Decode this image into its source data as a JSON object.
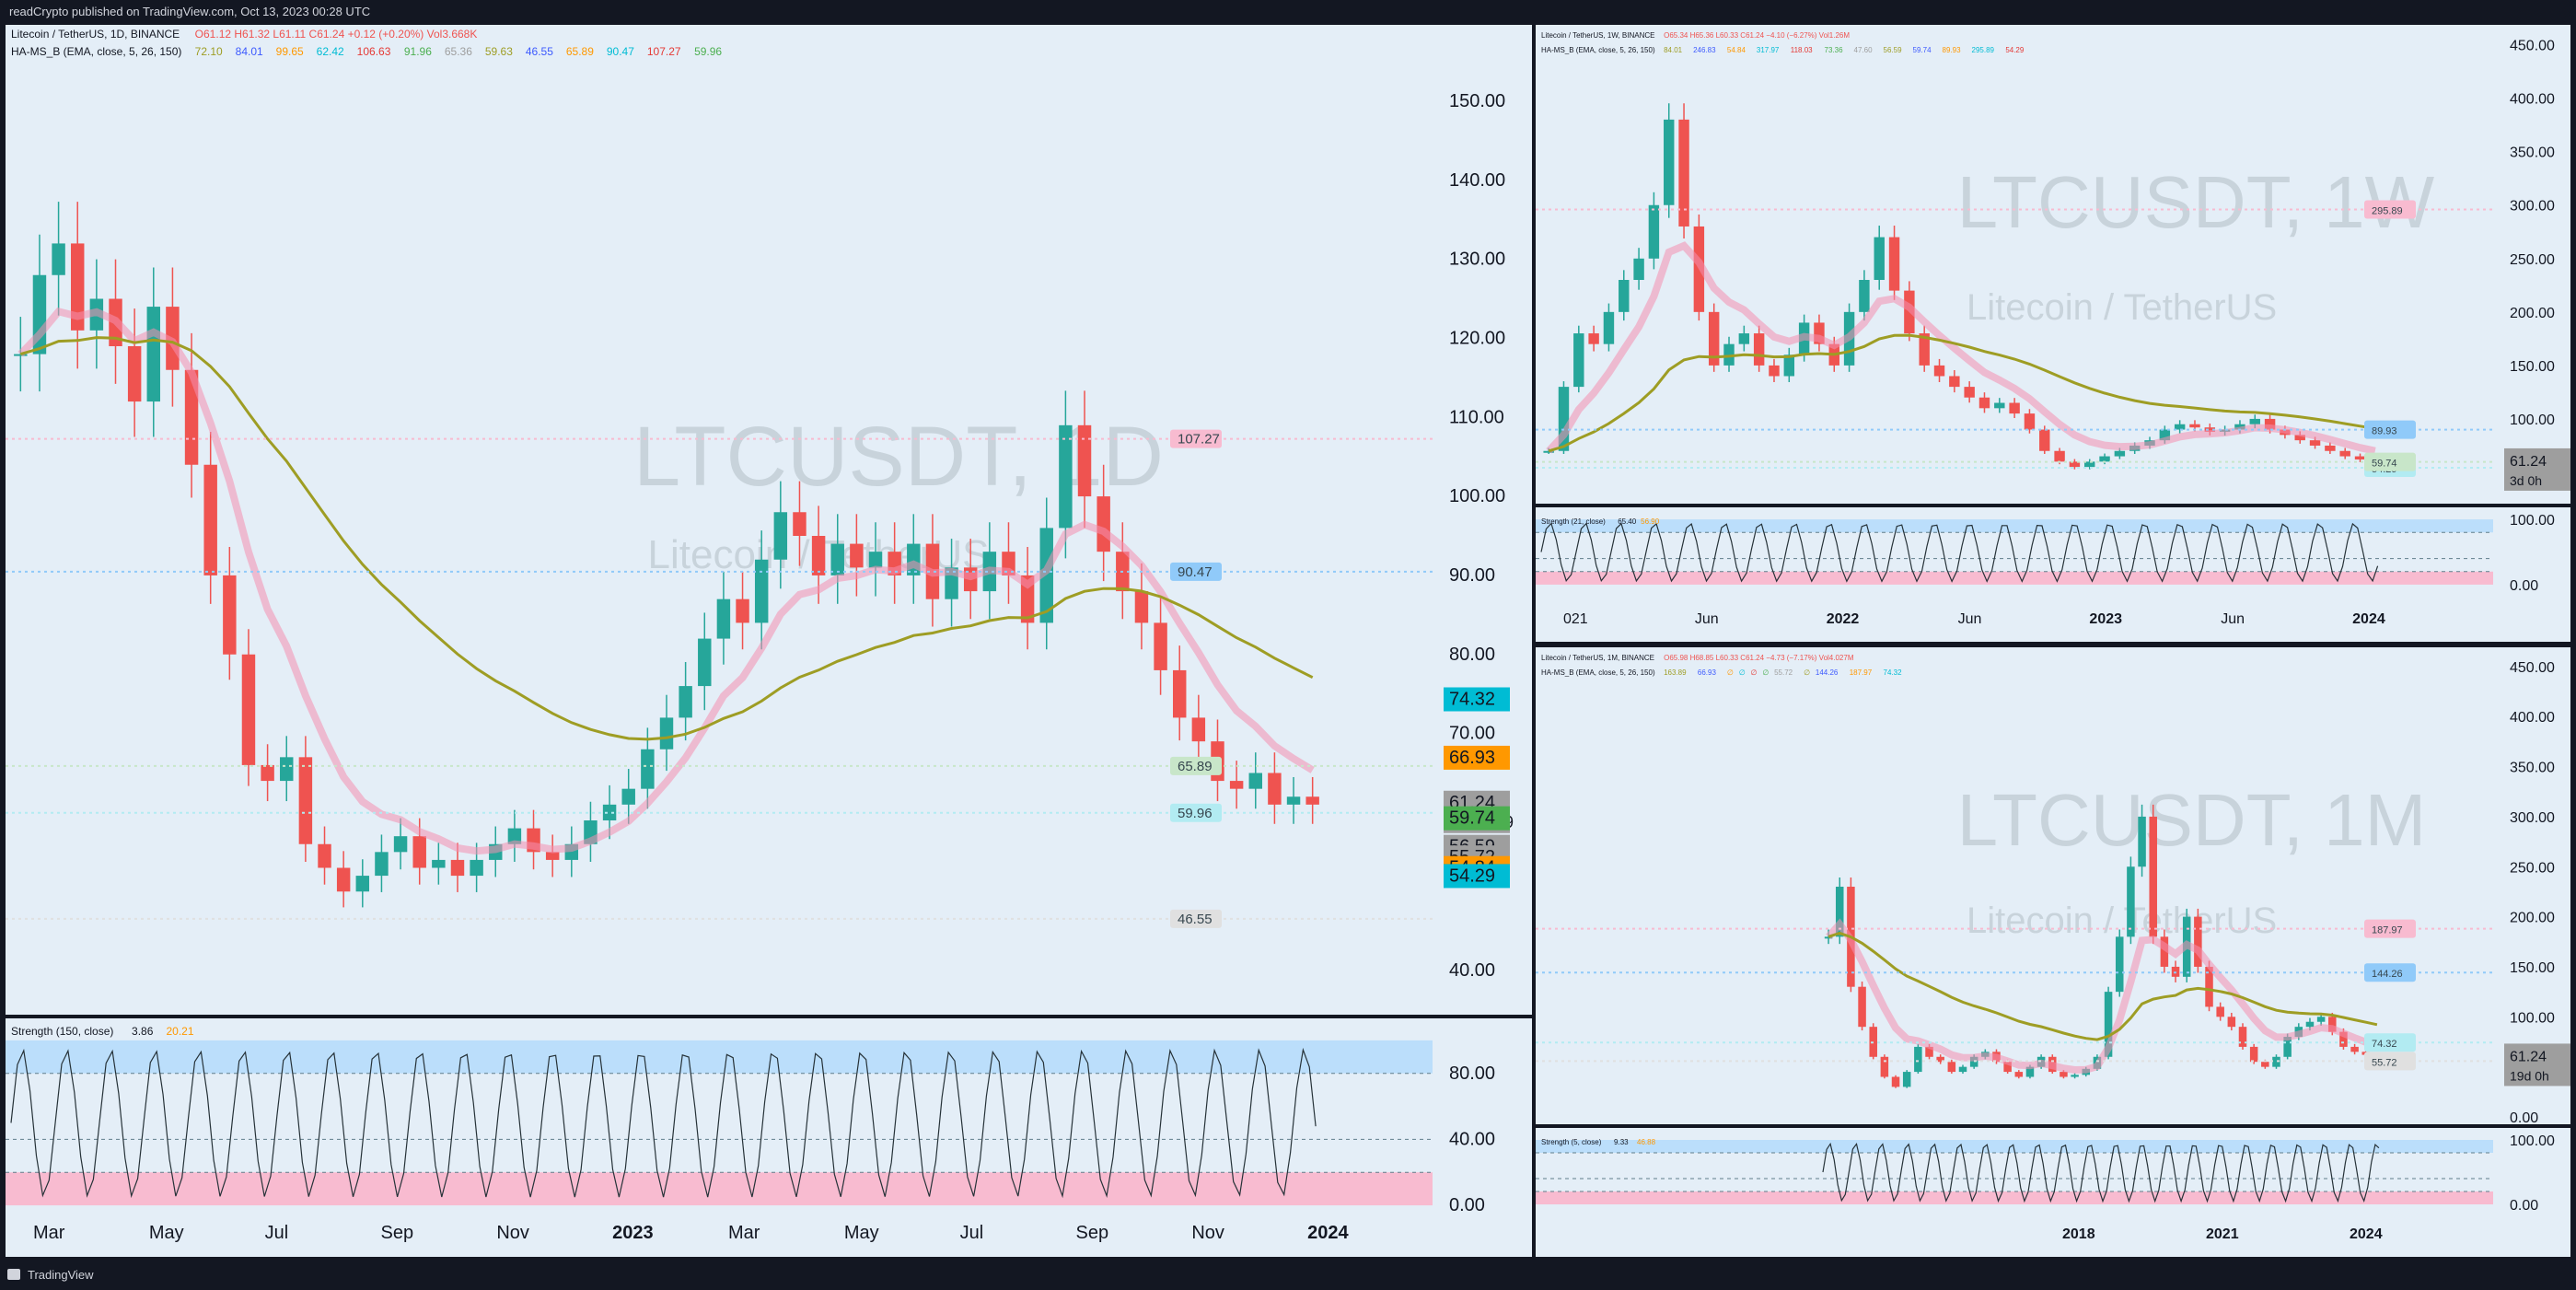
{
  "header": {
    "published": "readCrypto published on TradingView.com, Oct 13, 2023 00:28 UTC"
  },
  "footer": {
    "brand": "TradingView"
  },
  "colors": {
    "bg": "#e4eef7",
    "frame": "#131722",
    "up": "#26a69a",
    "down": "#ef5350",
    "blue": "#3d5afe",
    "orange": "#ff9800",
    "olive": "#9e9d24",
    "yellow": "#d4d45a",
    "pink": "#f48fb1",
    "cyan": "#00bcd4",
    "green": "#4caf50",
    "gray": "#9e9e9e",
    "red": "#e53935"
  },
  "chart_data": [
    {
      "type": "candlestick",
      "title": "LTCUSDT, 1D",
      "subtitle": "Litecoin / TetherUS",
      "legend": {
        "symbol": "Litecoin / TetherUS, 1D, BINANCE",
        "ohlc": "O61.12 H61.32 L61.11 C61.24 +0.12 (+0.20%) Vol3.668K",
        "indicator": "HA-MS_B (EMA, close, 5, 26, 150)",
        "indicator_values": [
          "72.10",
          "84.01",
          "99.65",
          "62.42",
          "106.63",
          "91.96",
          "65.36",
          "59.63",
          "46.55",
          "65.89",
          "90.47",
          "107.27",
          "59.96"
        ]
      },
      "ylim": [
        35,
        155
      ],
      "y_ticks": [
        "150.00",
        "140.00",
        "130.00",
        "120.00",
        "110.00",
        "100.00",
        "90.00",
        "80.00",
        "70.00",
        "40.00"
      ],
      "x_ticks": [
        "Mar",
        "May",
        "Jul",
        "Sep",
        "Nov",
        "2023",
        "Mar",
        "May",
        "Jul",
        "Sep",
        "Nov",
        "2024"
      ],
      "price_tags": [
        {
          "label": "74.32",
          "value": 74.32,
          "color": "#00bcd4"
        },
        {
          "label": "66.93",
          "value": 66.93,
          "color": "#ff9800"
        },
        {
          "label": "61.24",
          "value": 61.24,
          "color": "#9e9e9e",
          "sub": "23:31:59"
        },
        {
          "label": "59.74",
          "value": 59.74,
          "color": "#4caf50"
        },
        {
          "label": "56.59",
          "value": 56.59,
          "color": "#9e9e9e"
        },
        {
          "label": "55.72",
          "value": 55.72,
          "color": "#9e9e9e"
        },
        {
          "label": "54.84",
          "value": 54.84,
          "color": "#ff9800"
        },
        {
          "label": "54.29",
          "value": 54.29,
          "color": "#00bcd4"
        }
      ],
      "level_labels": [
        {
          "label": "107.27",
          "value": 107.27,
          "color": "#f8bbd0"
        },
        {
          "label": "90.47",
          "value": 90.47,
          "color": "#90caf9"
        },
        {
          "label": "65.89",
          "value": 65.89,
          "color": "#c8e6c9"
        },
        {
          "label": "59.96",
          "value": 59.96,
          "color": "#b2ebf2"
        },
        {
          "label": "46.55",
          "value": 46.55,
          "color": "#e0e0e0"
        }
      ],
      "series": [
        {
          "values": [
            118,
            128,
            132,
            121,
            125,
            119,
            112,
            124,
            116,
            104,
            90,
            80,
            66,
            64,
            67,
            56,
            53,
            50,
            52,
            55,
            57,
            53,
            54,
            52,
            54,
            56,
            58,
            55,
            54,
            56,
            59,
            61,
            63,
            68,
            72,
            76,
            82,
            87,
            84,
            92,
            98,
            95,
            90,
            94,
            91,
            93,
            90,
            94,
            87,
            91,
            88,
            93,
            90,
            84,
            96,
            109,
            100,
            93,
            88,
            84,
            78,
            72,
            69,
            64,
            63,
            65,
            61,
            62,
            61
          ]
        }
      ],
      "oscillator": {
        "label": "Strength (150, close)",
        "values_text": [
          "3.86",
          "20.21"
        ],
        "ylim": [
          -10,
          110
        ],
        "y_ticks": [
          "80.00",
          "40.00",
          "0.00"
        ]
      }
    },
    {
      "type": "candlestick",
      "title": "LTCUSDT, 1W",
      "subtitle": "Litecoin / TetherUS",
      "legend": {
        "symbol": "Litecoin / TetherUS, 1W, BINANCE",
        "ohlc": "O65.34 H65.36 L60.33 C61.24 −4.10 (−6.27%) Vol1.26M",
        "indicator": "HA-MS_B (EMA, close, 5, 26, 150)",
        "indicator_values": [
          "84.01",
          "246.83",
          "54.84",
          "317.97",
          "118.03",
          "73.36",
          "47.60",
          "56.59",
          "59.74",
          "89.93",
          "295.89",
          "54.29"
        ]
      },
      "ylim": [
        25,
        460
      ],
      "y_ticks": [
        "450.00",
        "400.00",
        "350.00",
        "300.00",
        "250.00",
        "200.00",
        "150.00",
        "100.00"
      ],
      "x_ticks": [
        "021",
        "Jun",
        "2022",
        "Jun",
        "2023",
        "Jun",
        "2024"
      ],
      "price_tags": [
        {
          "label": "61.24",
          "value": 61.24,
          "color": "#9e9e9e",
          "sub": "3d 0h"
        }
      ],
      "level_labels": [
        {
          "label": "295.89",
          "value": 295.89,
          "color": "#f8bbd0"
        },
        {
          "label": "89.93",
          "value": 89.93,
          "color": "#90caf9"
        },
        {
          "label": "54.29",
          "value": 54.29,
          "color": "#b2ebf2"
        },
        {
          "label": "59.74",
          "value": 59.74,
          "color": "#c8e6c9"
        }
      ],
      "series": [
        {
          "values": [
            70,
            130,
            180,
            170,
            200,
            230,
            250,
            300,
            380,
            280,
            200,
            150,
            170,
            180,
            150,
            140,
            160,
            190,
            170,
            150,
            200,
            230,
            270,
            220,
            180,
            150,
            140,
            130,
            120,
            110,
            115,
            105,
            90,
            70,
            60,
            55,
            60,
            65,
            70,
            75,
            80,
            90,
            95,
            92,
            88,
            90,
            95,
            100,
            90,
            85,
            80,
            75,
            70,
            65,
            62,
            61
          ]
        }
      ],
      "oscillator": {
        "label": "Strength (21, close)",
        "values_text": [
          "65.40",
          "56.90"
        ],
        "ylim": [
          -10,
          110
        ],
        "y_ticks": [
          "100.00",
          "0.00"
        ]
      }
    },
    {
      "type": "candlestick",
      "title": "LTCUSDT, 1M",
      "subtitle": "Litecoin / TetherUS",
      "legend": {
        "symbol": "Litecoin / TetherUS, 1M, BINANCE",
        "ohlc": "O65.98 H68.85 L60.33 C61.24 −4.73 (−7.17%) Vol4.027M",
        "indicator": "HA-MS_B (EMA, close, 5, 26, 150)",
        "indicator_values": [
          "163.89",
          "66.93",
          "∅",
          "∅",
          "∅",
          "∅",
          "55.72",
          "∅",
          "144.26",
          "187.97",
          "74.32"
        ]
      },
      "ylim": [
        0,
        460
      ],
      "y_ticks": [
        "450.00",
        "400.00",
        "350.00",
        "300.00",
        "250.00",
        "200.00",
        "150.00",
        "100.00",
        "50.00",
        "0.00"
      ],
      "x_ticks": [
        "2018",
        "2021",
        "2024"
      ],
      "price_tags": [
        {
          "label": "61.24",
          "value": 61.24,
          "color": "#9e9e9e",
          "sub": "19d 0h"
        }
      ],
      "level_labels": [
        {
          "label": "187.97",
          "value": 187.97,
          "color": "#f8bbd0"
        },
        {
          "label": "144.26",
          "value": 144.26,
          "color": "#90caf9"
        },
        {
          "label": "74.32",
          "value": 74.32,
          "color": "#b2ebf2"
        },
        {
          "label": "55.72",
          "value": 55.72,
          "color": "#e0e0e0"
        }
      ],
      "series": [
        {
          "values": [
            180,
            230,
            130,
            90,
            60,
            40,
            30,
            45,
            70,
            60,
            55,
            45,
            50,
            60,
            65,
            55,
            45,
            40,
            50,
            60,
            45,
            40,
            42,
            48,
            60,
            125,
            180,
            250,
            300,
            180,
            150,
            140,
            200,
            150,
            110,
            100,
            90,
            70,
            55,
            50,
            60,
            80,
            90,
            95,
            100,
            85,
            70,
            65,
            62,
            61
          ]
        }
      ],
      "oscillator": {
        "label": "Strength (5, close)",
        "values_text": [
          "9.33",
          "46.88"
        ],
        "ylim": [
          -10,
          110
        ],
        "y_ticks": [
          "100.00",
          "0.00"
        ]
      }
    }
  ]
}
